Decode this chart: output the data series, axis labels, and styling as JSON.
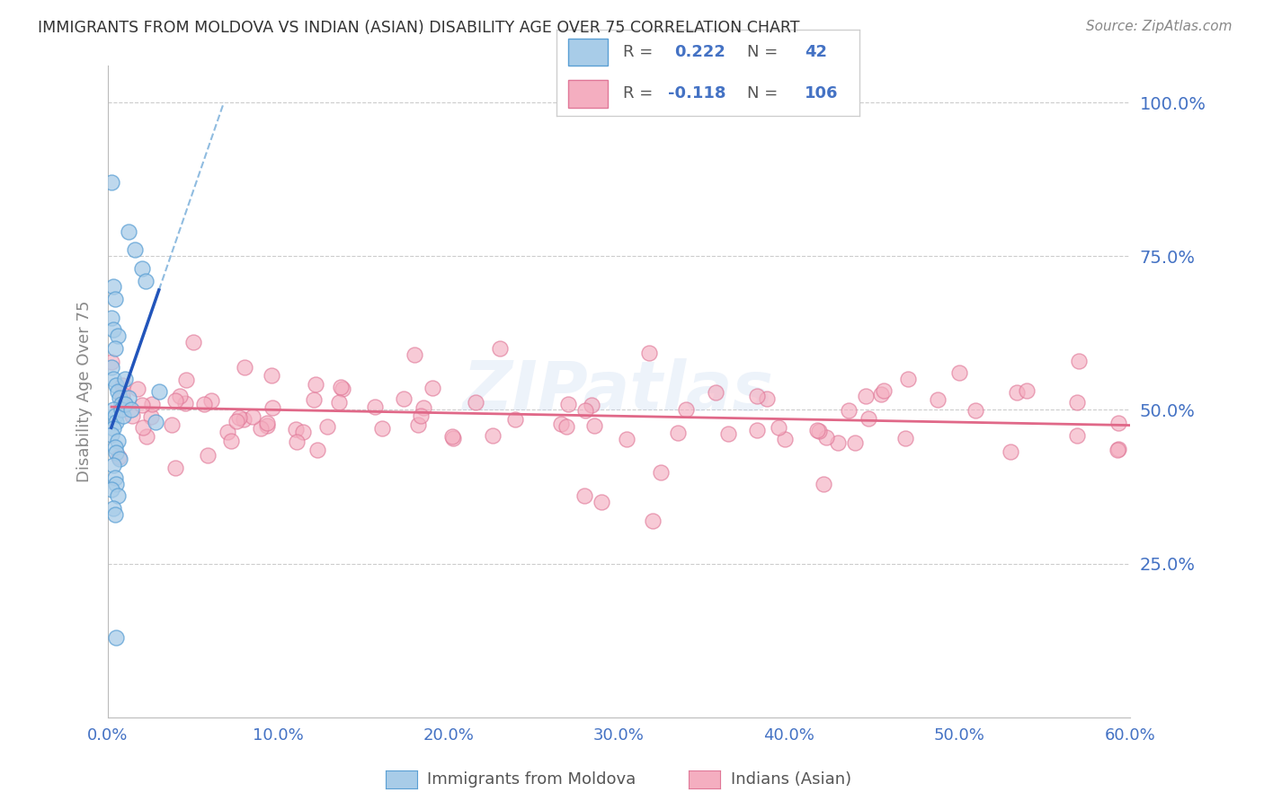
{
  "title": "IMMIGRANTS FROM MOLDOVA VS INDIAN (ASIAN) DISABILITY AGE OVER 75 CORRELATION CHART",
  "source": "Source: ZipAtlas.com",
  "ylabel": "Disability Age Over 75",
  "xlim": [
    0.0,
    0.6
  ],
  "ylim": [
    0.0,
    1.06
  ],
  "xtick_labels": [
    "0.0%",
    "10.0%",
    "20.0%",
    "30.0%",
    "40.0%",
    "50.0%",
    "60.0%"
  ],
  "xtick_values": [
    0.0,
    0.1,
    0.2,
    0.3,
    0.4,
    0.5,
    0.6
  ],
  "ytick_labels": [
    "25.0%",
    "50.0%",
    "75.0%",
    "100.0%"
  ],
  "ytick_values": [
    0.25,
    0.5,
    0.75,
    1.0
  ],
  "moldova_color": "#a8cce8",
  "moldova_edge_color": "#5a9fd4",
  "indian_color": "#f4aec0",
  "indian_edge_color": "#e07898",
  "trendline_moldova_solid": "#2255bb",
  "trendline_moldova_dash": "#90bce0",
  "trendline_indian": "#e06888",
  "R_moldova": 0.222,
  "N_moldova": 42,
  "R_indian": -0.118,
  "N_indian": 106,
  "background_color": "#ffffff",
  "grid_color": "#cccccc",
  "title_color": "#333333",
  "axis_label_color": "#888888",
  "tick_color": "#4472c4",
  "watermark": "ZIPatlas",
  "bottom_legend1": "Immigrants from Moldova",
  "bottom_legend2": "Indians (Asian)"
}
